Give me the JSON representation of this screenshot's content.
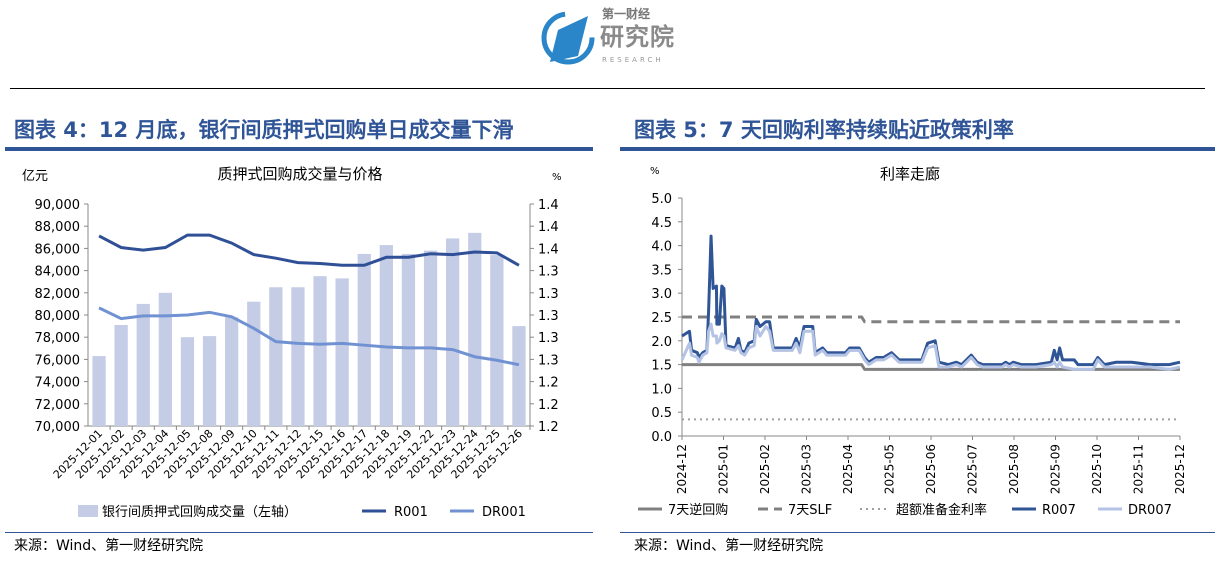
{
  "logo": {
    "line1": "第一财经",
    "line2": "研究院",
    "line3": "RESEARCH"
  },
  "figure4": {
    "title": "图表 4：12 月底，银行间质押式回购单日成交量下滑",
    "source": "来源：Wind、第一财经研究院"
  },
  "figure5": {
    "title": "图表 5：7 天回购利率持续贴近政策利率",
    "source": "来源：Wind、第一财经研究院"
  },
  "colors": {
    "title": "#2f5597",
    "bar": "#c5cde6",
    "r001": "#2f4f96",
    "dr001": "#7192d2",
    "omo": "#808080",
    "slf": "#808080",
    "excess": "#a0a0a0",
    "r007": "#2f5597",
    "dr007": "#b4c3e4"
  },
  "chart_data": [
    {
      "type": "bar",
      "title": "质押式回购成交量与价格",
      "ylabel": "亿元",
      "y2label": "%",
      "ylim": [
        70000,
        90000
      ],
      "y2lim": [
        1.2,
        1.45
      ],
      "yticks": [
        "70,000",
        "72,000",
        "74,000",
        "76,000",
        "78,000",
        "80,000",
        "82,000",
        "84,000",
        "86,000",
        "88,000",
        "90,000"
      ],
      "y2ticks": [
        "1.2",
        "1.2",
        "1.2",
        "1.3",
        "1.3",
        "1.3",
        "1.3",
        "1.3",
        "1.4",
        "1.4",
        "1.4"
      ],
      "categories": [
        "2025-12-01",
        "2025-12-02",
        "2025-12-03",
        "2025-12-04",
        "2025-12-05",
        "2025-12-08",
        "2025-12-09",
        "2025-12-10",
        "2025-12-11",
        "2025-12-12",
        "2025-12-15",
        "2025-12-16",
        "2025-12-17",
        "2025-12-18",
        "2025-12-19",
        "2025-12-22",
        "2025-12-23",
        "2025-12-24",
        "2025-12-25",
        "2025-12-26"
      ],
      "series": [
        {
          "name": "银行间质押式回购成交量（左轴）",
          "kind": "bar",
          "axis": "left",
          "values": [
            76300,
            79100,
            81000,
            82000,
            78000,
            78100,
            79800,
            81200,
            82500,
            82500,
            83500,
            83300,
            85500,
            86300,
            85500,
            85800,
            86900,
            87400,
            85400,
            79000
          ]
        },
        {
          "name": "R001",
          "kind": "line",
          "axis": "right",
          "values": [
            1.414,
            1.401,
            1.398,
            1.401,
            1.415,
            1.415,
            1.406,
            1.393,
            1.389,
            1.384,
            1.383,
            1.381,
            1.381,
            1.39,
            1.39,
            1.394,
            1.393,
            1.396,
            1.395,
            1.381
          ]
        },
        {
          "name": "DR001",
          "kind": "line",
          "axis": "right",
          "values": [
            1.333,
            1.321,
            1.324,
            1.324,
            1.325,
            1.328,
            1.323,
            1.31,
            1.295,
            1.293,
            1.292,
            1.293,
            1.291,
            1.289,
            1.288,
            1.288,
            1.286,
            1.278,
            1.274,
            1.269
          ]
        }
      ],
      "legend": "bottom"
    },
    {
      "type": "line",
      "title": "利率走廊",
      "ylabel": "%",
      "ylim": [
        0,
        5
      ],
      "yticks": [
        "0.0",
        "0.5",
        "1.0",
        "1.5",
        "2.0",
        "2.5",
        "3.0",
        "3.5",
        "4.0",
        "4.5",
        "5.0"
      ],
      "xticks": [
        "2024-12",
        "2025-01",
        "2025-02",
        "2025-03",
        "2025-04",
        "2025-05",
        "2025-06",
        "2025-07",
        "2025-08",
        "2025-09",
        "2025-10",
        "2025-11",
        "2025-12"
      ],
      "x_unit": "months since 2024-12",
      "series": [
        {
          "name": "7天逆回购",
          "style": "solid",
          "points": [
            [
              0,
              1.5
            ],
            [
              4.33,
              1.5
            ],
            [
              4.4,
              1.4
            ],
            [
              12,
              1.4
            ]
          ]
        },
        {
          "name": "7天SLF",
          "style": "dashed",
          "points": [
            [
              0,
              2.5
            ],
            [
              4.33,
              2.5
            ],
            [
              4.4,
              2.4
            ],
            [
              12,
              2.4
            ]
          ]
        },
        {
          "name": "超额准备金利率",
          "style": "dotted",
          "points": [
            [
              0,
              0.35
            ],
            [
              12,
              0.35
            ]
          ]
        },
        {
          "name": "R007",
          "style": "solid",
          "points": [
            [
              0,
              2.1
            ],
            [
              0.18,
              2.2
            ],
            [
              0.23,
              1.8
            ],
            [
              0.37,
              1.75
            ],
            [
              0.41,
              1.65
            ],
            [
              0.5,
              1.75
            ],
            [
              0.6,
              1.8
            ],
            [
              0.64,
              2.6
            ],
            [
              0.7,
              4.2
            ],
            [
              0.75,
              3.1
            ],
            [
              0.83,
              3.15
            ],
            [
              0.84,
              2.35
            ],
            [
              0.9,
              2.35
            ],
            [
              0.96,
              3.15
            ],
            [
              1.01,
              3.1
            ],
            [
              1.06,
              1.9
            ],
            [
              1.28,
              1.85
            ],
            [
              1.36,
              2.05
            ],
            [
              1.42,
              1.8
            ],
            [
              1.51,
              1.75
            ],
            [
              1.61,
              1.95
            ],
            [
              1.74,
              2.0
            ],
            [
              1.79,
              2.45
            ],
            [
              1.88,
              2.3
            ],
            [
              2.02,
              2.4
            ],
            [
              2.11,
              2.4
            ],
            [
              2.2,
              1.85
            ],
            [
              2.48,
              1.85
            ],
            [
              2.66,
              1.85
            ],
            [
              2.75,
              2.05
            ],
            [
              2.84,
              1.85
            ],
            [
              2.94,
              2.3
            ],
            [
              3.15,
              2.3
            ],
            [
              3.21,
              1.75
            ],
            [
              3.39,
              1.85
            ],
            [
              3.49,
              1.75
            ],
            [
              3.94,
              1.75
            ],
            [
              4.04,
              1.85
            ],
            [
              4.27,
              1.85
            ],
            [
              4.4,
              1.65
            ],
            [
              4.5,
              1.55
            ],
            [
              4.68,
              1.65
            ],
            [
              4.86,
              1.65
            ],
            [
              5.05,
              1.75
            ],
            [
              5.23,
              1.6
            ],
            [
              5.78,
              1.6
            ],
            [
              5.92,
              1.95
            ],
            [
              6.1,
              2.0
            ],
            [
              6.19,
              1.55
            ],
            [
              6.42,
              1.5
            ],
            [
              6.61,
              1.55
            ],
            [
              6.74,
              1.5
            ],
            [
              6.97,
              1.7
            ],
            [
              7.11,
              1.55
            ],
            [
              7.25,
              1.5
            ],
            [
              7.71,
              1.5
            ],
            [
              7.8,
              1.55
            ],
            [
              7.89,
              1.5
            ],
            [
              7.98,
              1.55
            ],
            [
              8.17,
              1.5
            ],
            [
              8.53,
              1.5
            ],
            [
              8.9,
              1.55
            ],
            [
              8.97,
              1.8
            ],
            [
              9.04,
              1.6
            ],
            [
              9.1,
              1.85
            ],
            [
              9.17,
              1.6
            ],
            [
              9.45,
              1.6
            ],
            [
              9.54,
              1.5
            ],
            [
              9.91,
              1.5
            ],
            [
              10.02,
              1.65
            ],
            [
              10.18,
              1.5
            ],
            [
              10.46,
              1.55
            ],
            [
              10.83,
              1.55
            ],
            [
              11.28,
              1.5
            ],
            [
              11.74,
              1.5
            ],
            [
              12,
              1.55
            ]
          ]
        },
        {
          "name": "DR007",
          "style": "solid",
          "points": [
            [
              0,
              1.6
            ],
            [
              0.18,
              1.95
            ],
            [
              0.23,
              1.7
            ],
            [
              0.37,
              1.65
            ],
            [
              0.41,
              1.55
            ],
            [
              0.5,
              1.7
            ],
            [
              0.6,
              1.75
            ],
            [
              0.64,
              2.2
            ],
            [
              0.7,
              2.35
            ],
            [
              0.75,
              2.1
            ],
            [
              0.83,
              2.1
            ],
            [
              0.84,
              1.95
            ],
            [
              0.9,
              2.0
            ],
            [
              0.96,
              2.15
            ],
            [
              1.01,
              2.1
            ],
            [
              1.06,
              1.85
            ],
            [
              1.28,
              1.8
            ],
            [
              1.36,
              1.9
            ],
            [
              1.42,
              1.75
            ],
            [
              1.51,
              1.7
            ],
            [
              1.61,
              1.85
            ],
            [
              1.74,
              1.9
            ],
            [
              1.79,
              2.3
            ],
            [
              1.88,
              2.1
            ],
            [
              2.02,
              2.3
            ],
            [
              2.11,
              2.2
            ],
            [
              2.2,
              1.8
            ],
            [
              2.48,
              1.8
            ],
            [
              2.66,
              1.8
            ],
            [
              2.75,
              1.95
            ],
            [
              2.84,
              1.75
            ],
            [
              2.94,
              2.2
            ],
            [
              3.15,
              2.2
            ],
            [
              3.21,
              1.7
            ],
            [
              3.39,
              1.8
            ],
            [
              3.49,
              1.7
            ],
            [
              3.94,
              1.7
            ],
            [
              4.04,
              1.8
            ],
            [
              4.27,
              1.8
            ],
            [
              4.4,
              1.6
            ],
            [
              4.5,
              1.5
            ],
            [
              4.68,
              1.6
            ],
            [
              4.86,
              1.6
            ],
            [
              5.05,
              1.7
            ],
            [
              5.23,
              1.55
            ],
            [
              5.78,
              1.55
            ],
            [
              5.92,
              1.85
            ],
            [
              6.1,
              1.9
            ],
            [
              6.19,
              1.45
            ],
            [
              6.42,
              1.45
            ],
            [
              6.61,
              1.5
            ],
            [
              6.74,
              1.45
            ],
            [
              6.97,
              1.65
            ],
            [
              7.11,
              1.5
            ],
            [
              7.25,
              1.45
            ],
            [
              7.71,
              1.45
            ],
            [
              7.8,
              1.5
            ],
            [
              7.89,
              1.45
            ],
            [
              7.98,
              1.5
            ],
            [
              8.17,
              1.45
            ],
            [
              8.53,
              1.45
            ],
            [
              8.9,
              1.5
            ],
            [
              8.97,
              1.55
            ],
            [
              9.04,
              1.45
            ],
            [
              9.1,
              1.55
            ],
            [
              9.17,
              1.45
            ],
            [
              9.45,
              1.4
            ],
            [
              9.54,
              1.4
            ],
            [
              9.91,
              1.4
            ],
            [
              10.02,
              1.6
            ],
            [
              10.18,
              1.45
            ],
            [
              10.46,
              1.45
            ],
            [
              10.83,
              1.45
            ],
            [
              11.28,
              1.45
            ],
            [
              11.74,
              1.4
            ],
            [
              12,
              1.45
            ]
          ]
        }
      ],
      "legend": "bottom"
    }
  ]
}
